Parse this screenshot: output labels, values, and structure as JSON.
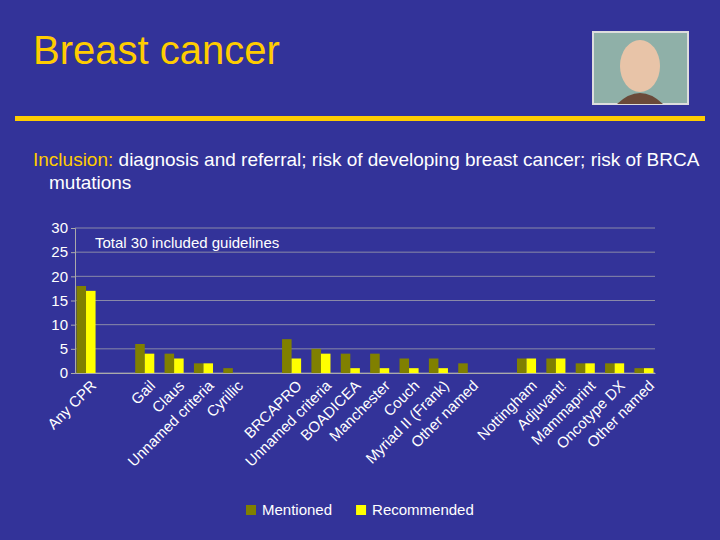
{
  "slide": {
    "title": "Breast cancer",
    "inclusion_label": "Inclusion:",
    "inclusion_text": "diagnosis and referral; risk of developing breast cancer; risk of BRCA mutations"
  },
  "chart_data": {
    "type": "bar",
    "annotation": "Total 30 included guidelines",
    "categories": [
      "Any CPR",
      null,
      "Gail",
      "Claus",
      "Unnamed criteria",
      "Cyrillic",
      null,
      "BRCAPRO",
      "Unnamed criteria",
      "BOADICEA",
      "Manchester",
      "Couch",
      "Myriad II (Frank)",
      "Other named",
      null,
      "Nottingham",
      "Adjuvant!",
      "Mammaprint",
      "Oncotype DX",
      "Other named"
    ],
    "series": [
      {
        "name": "Mentioned",
        "color": "#808000",
        "values": [
          18,
          null,
          6,
          4,
          2,
          1,
          null,
          7,
          5,
          4,
          4,
          3,
          3,
          2,
          null,
          3,
          3,
          2,
          2,
          1
        ]
      },
      {
        "name": "Recommended",
        "color": "#ffff00",
        "values": [
          17,
          null,
          4,
          3,
          2,
          0,
          null,
          3,
          4,
          1,
          1,
          1,
          1,
          0,
          null,
          3,
          3,
          2,
          2,
          1
        ]
      }
    ],
    "ylim": [
      0,
      30
    ],
    "yticks": [
      0,
      5,
      10,
      15,
      20,
      25,
      30
    ],
    "grid": true,
    "legend": "bottom"
  }
}
